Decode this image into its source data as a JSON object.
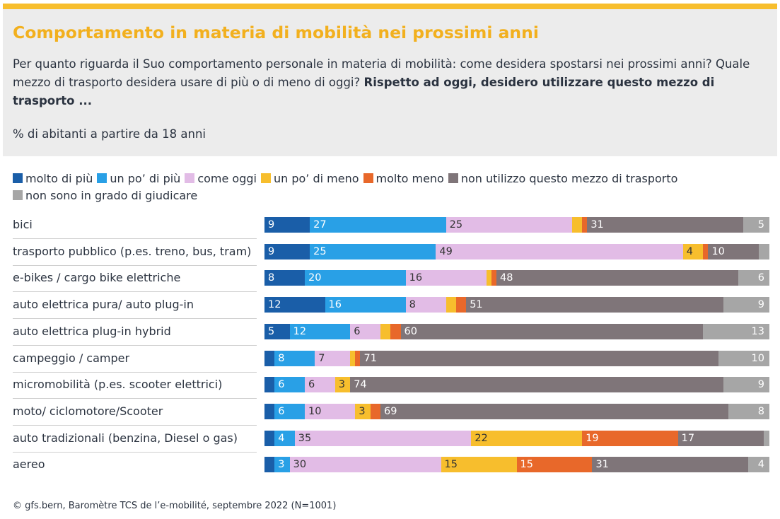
{
  "header": {
    "title": "Comportamento in materia di mobilità nei prossimi anni",
    "question_line1": "Per quanto riguarda il Suo comportamento personale in materia di mobilità: come desidera spostarsi nei prossimi anni?",
    "question_line2": "Quale mezzo di trasporto desidera usare di più o di meno di oggi?",
    "question_bold": "Rispetto ad oggi, desidero utilizzare questo mezzo di trasporto ...",
    "base": "% di abitanti a partire da 18 anni"
  },
  "footer": "© gfs.bern, Baromètre TCS de l’e-mobilité, septembre 2022 (N=1001)",
  "chart_data": {
    "type": "bar",
    "orientation": "horizontal",
    "stacked": true,
    "title": "Comportamento in materia di mobilità nei prossimi anni",
    "xlabel": "% di abitanti a partire da 18 anni",
    "xlim": [
      0,
      100
    ],
    "categories": [
      "bici",
      "trasporto pubblico (p.es. treno, bus, tram)",
      "e-bikes / cargo bike elettriche",
      "auto elettrica pura/ auto plug-in",
      "auto elettrica plug-in hybrid",
      "campeggio / camper",
      "micromobilità (p.es. scooter elettrici)",
      "moto/ ciclomotore/Scooter",
      "auto tradizionali (benzina, Diesel o gas)",
      "aereo"
    ],
    "series": [
      {
        "name": "molto di più",
        "color": "#1a5ea8",
        "text_color": "#ffffff",
        "values": [
          9,
          9,
          8,
          12,
          5,
          2,
          2,
          2,
          2,
          2
        ],
        "labels": [
          "9",
          "9",
          "8",
          "12",
          "5",
          "",
          "",
          "",
          "",
          ""
        ]
      },
      {
        "name": "un po’ di più",
        "color": "#29a0e6",
        "text_color": "#ffffff",
        "values": [
          27,
          25,
          20,
          16,
          12,
          8,
          6,
          6,
          4,
          3
        ],
        "labels": [
          "27",
          "25",
          "20",
          "16",
          "12",
          "8",
          "6",
          "6",
          "4",
          "3"
        ]
      },
      {
        "name": "come oggi",
        "color": "#e2bce6",
        "text_color": "#333333",
        "values": [
          25,
          49,
          16,
          8,
          6,
          7,
          6,
          10,
          35,
          30
        ],
        "labels": [
          "25",
          "49",
          "16",
          "8",
          "6",
          "7",
          "6",
          "10",
          "35",
          "30"
        ]
      },
      {
        "name": "un po’ di meno",
        "color": "#f7be2d",
        "text_color": "#333333",
        "values": [
          2,
          4,
          1,
          2,
          2,
          1,
          3,
          3,
          22,
          15
        ],
        "labels": [
          "",
          "4",
          "",
          "",
          "",
          "",
          "3",
          "3",
          "22",
          "15"
        ]
      },
      {
        "name": "molto meno",
        "color": "#e8682a",
        "text_color": "#ffffff",
        "values": [
          1,
          1,
          1,
          2,
          2,
          1,
          0,
          2,
          19,
          15
        ],
        "labels": [
          "",
          "",
          "",
          "",
          "",
          "",
          "",
          "",
          "19",
          "15"
        ]
      },
      {
        "name": "non utilizzo questo mezzo di trasporto",
        "color": "#7f7579",
        "text_color": "#ffffff",
        "values": [
          31,
          10,
          48,
          51,
          60,
          71,
          74,
          69,
          17,
          31
        ],
        "labels": [
          "31",
          "10",
          "48",
          "51",
          "60",
          "71",
          "74",
          "69",
          "17",
          "31"
        ]
      },
      {
        "name": "non sono in grado di giudicare",
        "color": "#a6a6a6",
        "text_color": "#ffffff",
        "values": [
          5,
          2,
          6,
          9,
          13,
          10,
          9,
          8,
          1,
          4
        ],
        "labels": [
          "5",
          "",
          "6",
          "9",
          "13",
          "10",
          "9",
          "8",
          "",
          "4"
        ]
      }
    ]
  }
}
